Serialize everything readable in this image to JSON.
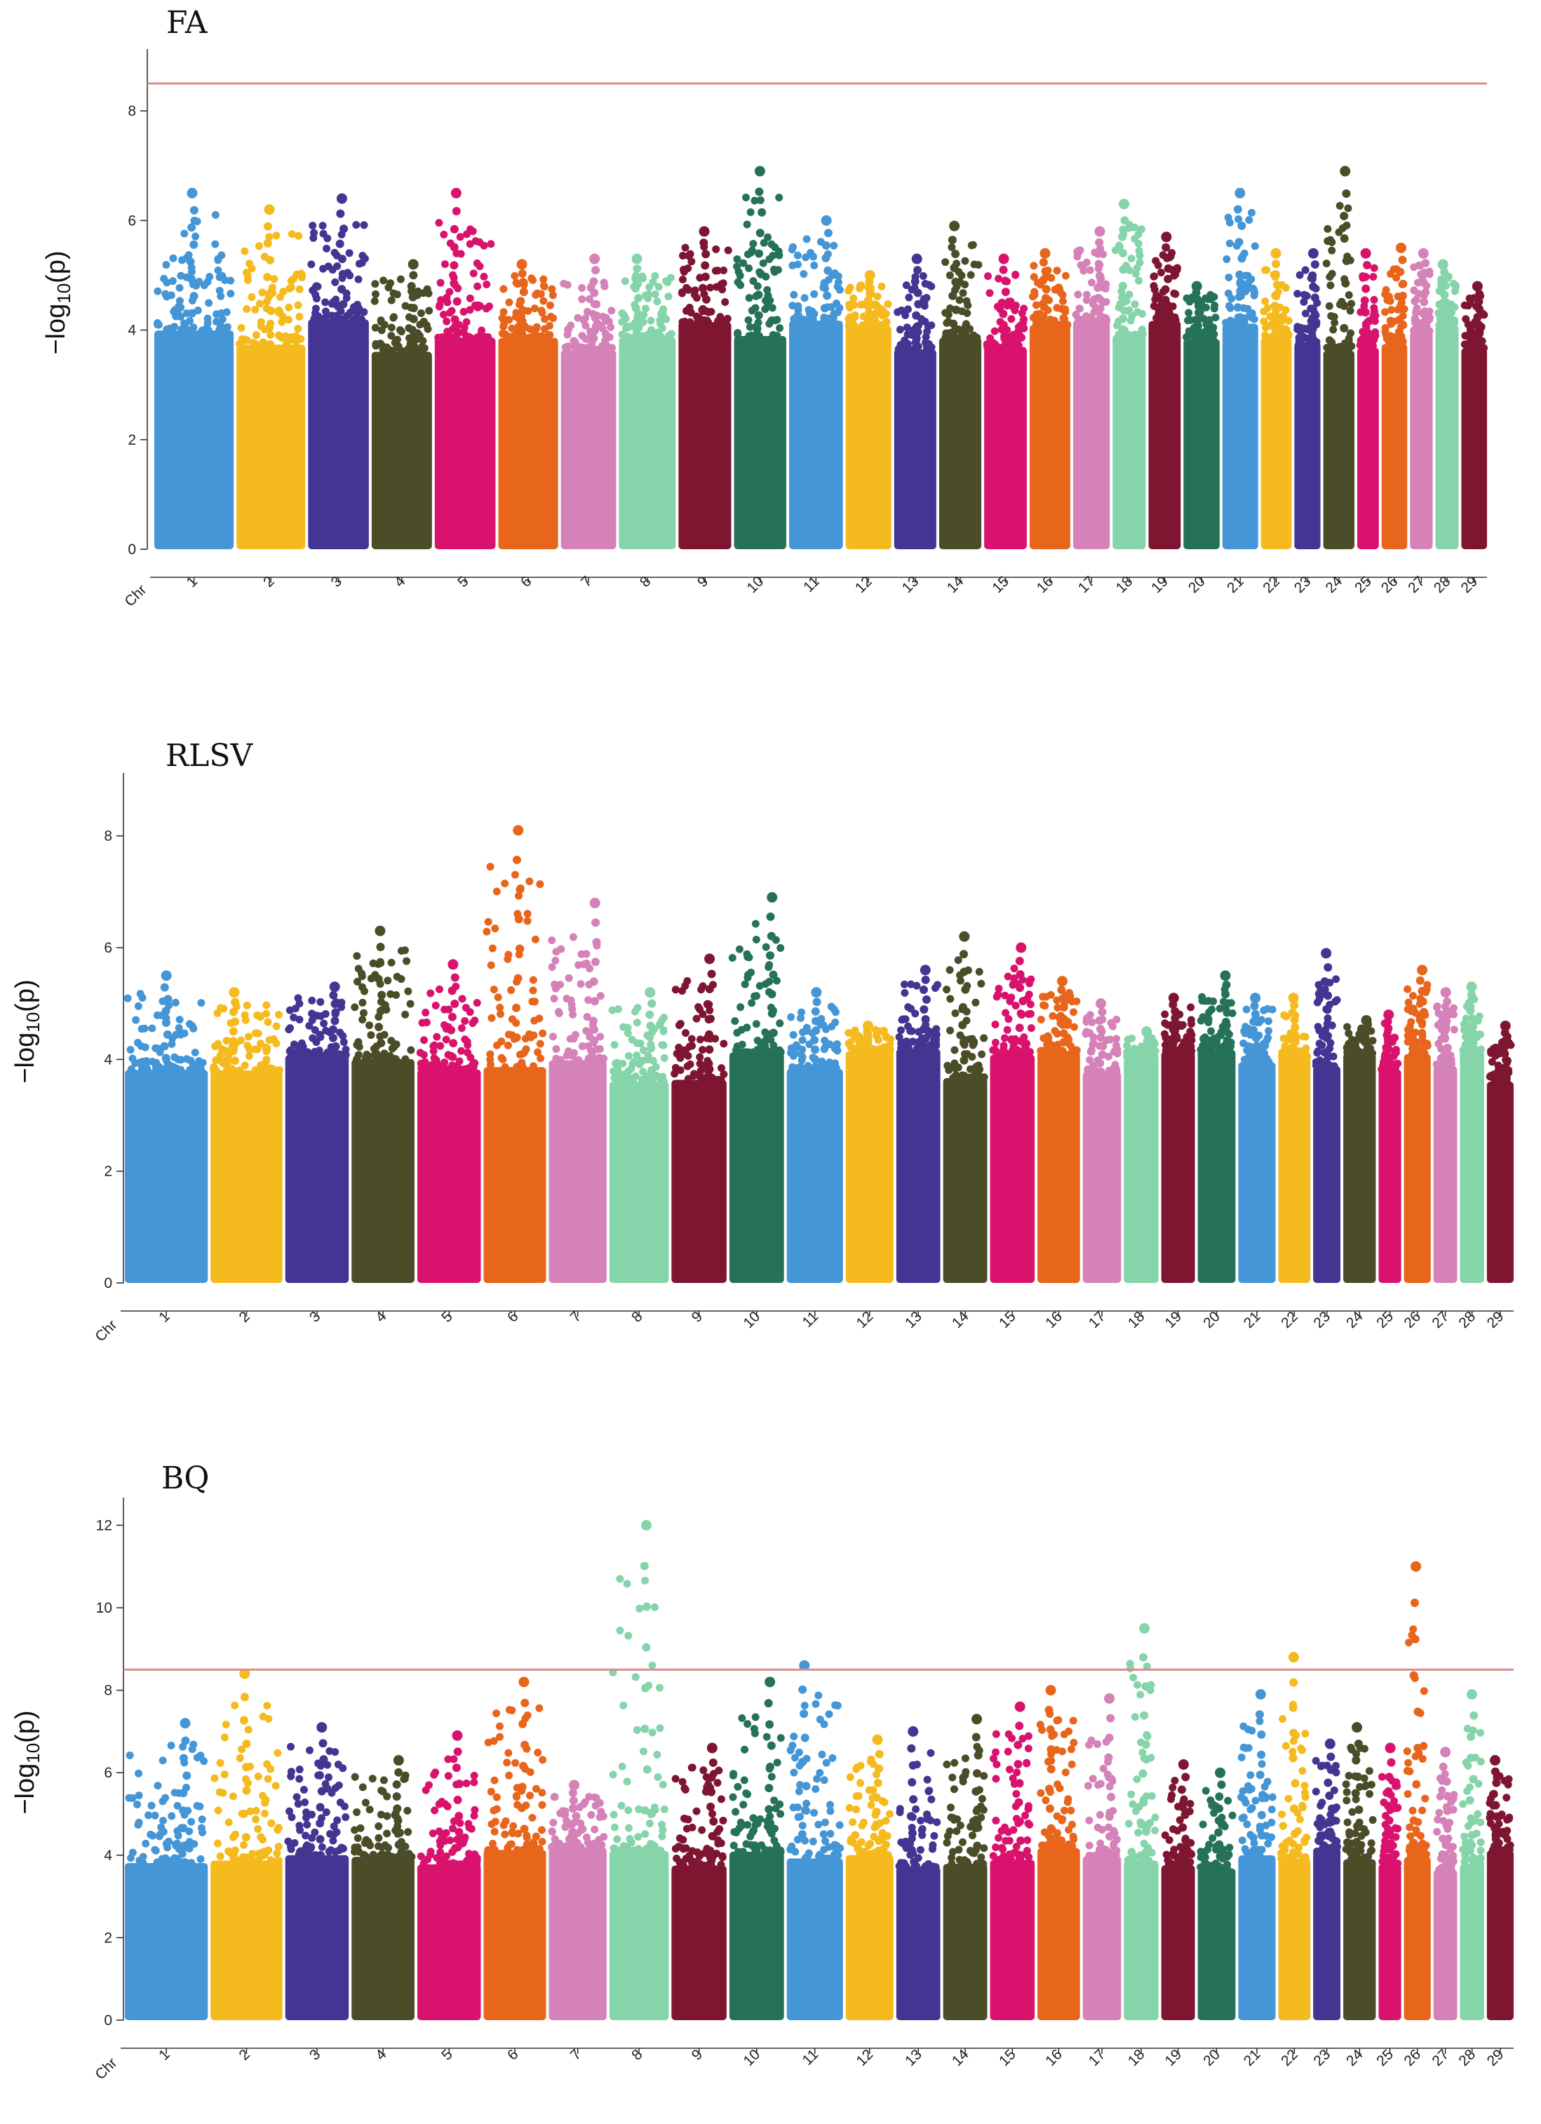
{
  "chart_data": [
    {
      "type": "scatter",
      "subtype": "manhattan",
      "title": "FA",
      "xlabel": "Chr",
      "ylabel": "−log10(p)",
      "ylim": [
        0,
        9
      ],
      "yticks": [
        0,
        2,
        4,
        6,
        8
      ],
      "threshold": 8.5,
      "categories": [
        "1",
        "2",
        "3",
        "4",
        "5",
        "6",
        "7",
        "8",
        "9",
        "10",
        "11",
        "12",
        "13",
        "14",
        "15",
        "16",
        "17",
        "18",
        "19",
        "20",
        "21",
        "22",
        "23",
        "24",
        "25",
        "26",
        "27",
        "28",
        "29"
      ],
      "chromosome_lengths": [
        158,
        137,
        121,
        120,
        121,
        119,
        110,
        113,
        105,
        104,
        107,
        91,
        84,
        84,
        85,
        81,
        73,
        66,
        64,
        72,
        71,
        61,
        52,
        62,
        43,
        51,
        45,
        46,
        51
      ],
      "peak_values": [
        6.5,
        6.2,
        6.4,
        5.2,
        6.5,
        5.2,
        5.3,
        5.3,
        5.8,
        6.9,
        6.0,
        5.0,
        5.3,
        5.9,
        5.3,
        5.4,
        5.8,
        6.3,
        5.7,
        4.8,
        6.5,
        5.4,
        5.4,
        6.9,
        5.4,
        5.5,
        5.4,
        5.2,
        4.8
      ]
    },
    {
      "type": "scatter",
      "subtype": "manhattan",
      "title": "RLSV",
      "xlabel": "Chr",
      "ylabel": "−log10(p)",
      "ylim": [
        0,
        9
      ],
      "yticks": [
        0,
        2,
        4,
        6,
        8
      ],
      "threshold": null,
      "categories": [
        "1",
        "2",
        "3",
        "4",
        "5",
        "6",
        "7",
        "8",
        "9",
        "10",
        "11",
        "12",
        "13",
        "14",
        "15",
        "16",
        "17",
        "18",
        "19",
        "20",
        "21",
        "22",
        "23",
        "24",
        "25",
        "26",
        "27",
        "28",
        "29"
      ],
      "chromosome_lengths": [
        158,
        137,
        121,
        120,
        121,
        119,
        110,
        113,
        105,
        104,
        107,
        91,
        84,
        84,
        85,
        81,
        73,
        66,
        64,
        72,
        71,
        61,
        52,
        62,
        43,
        51,
        45,
        46,
        51
      ],
      "peak_values": [
        5.5,
        5.2,
        5.3,
        6.3,
        5.7,
        8.1,
        6.8,
        5.2,
        5.8,
        6.9,
        5.2,
        4.6,
        5.6,
        6.2,
        6.0,
        5.4,
        5.0,
        4.5,
        5.1,
        5.5,
        5.1,
        5.1,
        5.9,
        4.7,
        4.8,
        5.6,
        5.2,
        5.3,
        4.6
      ]
    },
    {
      "type": "scatter",
      "subtype": "manhattan",
      "title": "BQ",
      "xlabel": "Chr",
      "ylabel": "−log10(p)",
      "ylim": [
        0,
        12.5
      ],
      "yticks": [
        0,
        2,
        4,
        6,
        8,
        10,
        12
      ],
      "threshold": 8.5,
      "categories": [
        "1",
        "2",
        "3",
        "4",
        "5",
        "6",
        "7",
        "8",
        "9",
        "10",
        "11",
        "12",
        "13",
        "14",
        "15",
        "16",
        "17",
        "18",
        "19",
        "20",
        "21",
        "22",
        "23",
        "24",
        "25",
        "26",
        "27",
        "28",
        "29"
      ],
      "chromosome_lengths": [
        158,
        137,
        121,
        120,
        121,
        119,
        110,
        113,
        105,
        104,
        107,
        91,
        84,
        84,
        85,
        81,
        73,
        66,
        64,
        72,
        71,
        61,
        52,
        62,
        43,
        51,
        45,
        46,
        51
      ],
      "peak_values": [
        7.2,
        8.4,
        7.1,
        6.3,
        6.9,
        8.2,
        5.7,
        12.0,
        6.6,
        8.2,
        8.6,
        6.8,
        7.0,
        7.3,
        7.6,
        8.0,
        7.8,
        9.5,
        6.2,
        6.0,
        7.9,
        8.8,
        6.7,
        7.1,
        6.6,
        11.0,
        6.5,
        7.9,
        6.3
      ]
    }
  ],
  "colors": [
    "#4596d6",
    "#f5ba1e",
    "#433693",
    "#4a4d27",
    "#d9136d",
    "#e8651c",
    "#d482b8",
    "#86d4a9",
    "#7e1632",
    "#267258"
  ],
  "threshold_color": "#d98c8c",
  "x_axis_prefix": "Chr"
}
